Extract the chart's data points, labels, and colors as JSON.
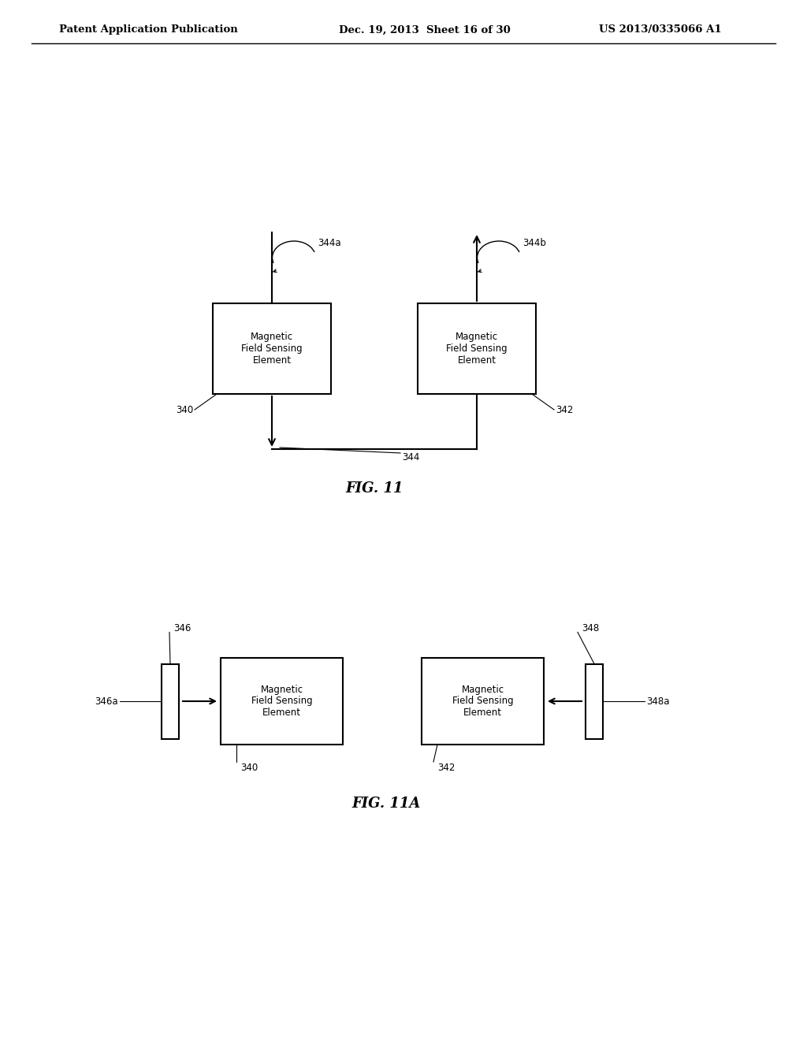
{
  "bg_color": "#ffffff",
  "header_left": "Patent Application Publication",
  "header_mid": "Dec. 19, 2013  Sheet 16 of 30",
  "header_right": "US 2013/0335066 A1",
  "fig11_title": "FIG. 11",
  "fig11a_title": "FIG. 11A",
  "box_text": "Magnetic\nField Sensing\nElement"
}
